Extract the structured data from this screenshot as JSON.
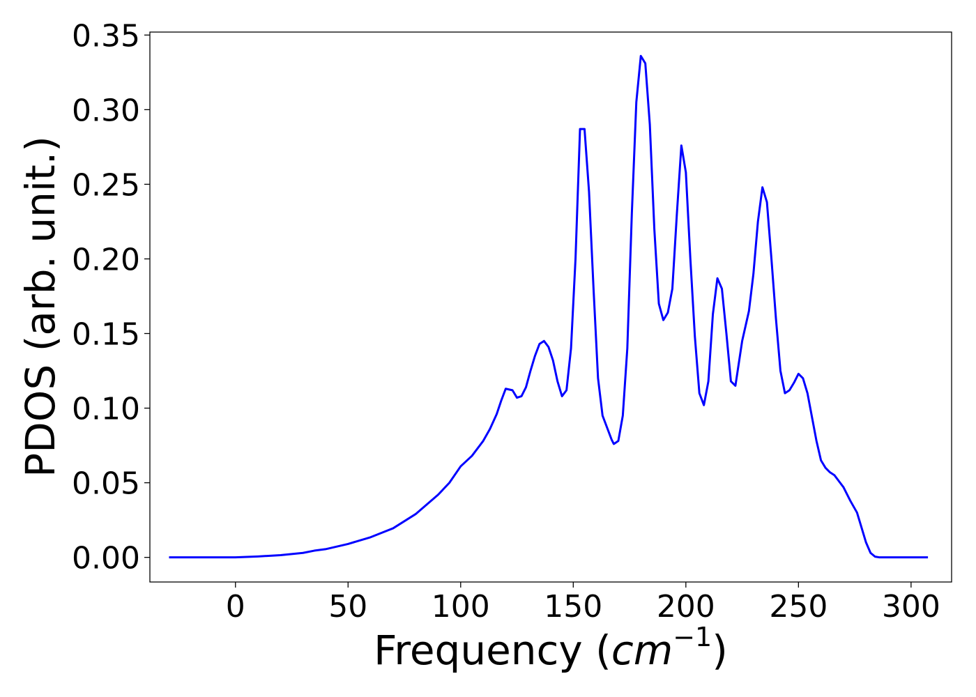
{
  "chart_data": {
    "type": "line",
    "title": "",
    "xlabel_main": "Frequency (",
    "xlabel_var": "cm",
    "xlabel_sup": "−1",
    "xlabel_close": ")",
    "ylabel": "PDOS (arb. unit.)",
    "xlim": [
      -38,
      318
    ],
    "ylim": [
      -0.0165,
      0.352
    ],
    "grid": false,
    "line_color": "#0000ff",
    "x_ticks": [
      0,
      50,
      100,
      150,
      200,
      250,
      300
    ],
    "x_tick_labels": [
      "0",
      "50",
      "100",
      "150",
      "200",
      "250",
      "300"
    ],
    "y_ticks": [
      0.0,
      0.05,
      0.1,
      0.15,
      0.2,
      0.25,
      0.3,
      0.35
    ],
    "y_tick_labels": [
      "0.00",
      "0.05",
      "0.10",
      "0.15",
      "0.20",
      "0.25",
      "0.30",
      "0.35"
    ],
    "series": [
      {
        "x": [
          -29.5,
          0,
          5,
          10,
          20,
          30,
          35,
          40,
          50,
          60,
          70,
          80,
          90,
          95,
          100,
          105,
          110,
          113,
          116,
          118,
          120,
          123,
          125,
          127,
          129,
          131,
          133,
          135,
          137,
          139,
          141,
          143,
          145,
          147,
          149,
          151,
          153,
          155,
          157,
          159,
          161,
          163,
          165,
          167,
          168,
          170,
          172,
          174,
          176,
          178,
          180,
          182,
          184,
          186,
          188,
          190,
          192,
          194,
          196,
          198,
          200,
          202,
          204,
          206,
          208,
          210,
          212,
          214,
          216,
          218,
          220,
          222,
          225,
          228,
          230,
          232,
          234,
          236,
          238,
          240,
          242,
          244,
          246,
          248,
          250,
          252,
          254,
          256,
          258,
          260,
          262,
          264,
          266,
          268,
          270,
          273,
          276,
          278,
          280,
          282,
          284,
          286,
          288,
          300,
          307.5
        ],
        "y": [
          0.0,
          0.0,
          0.0003,
          0.0006,
          0.0015,
          0.003,
          0.0045,
          0.0055,
          0.009,
          0.0135,
          0.0195,
          0.029,
          0.042,
          0.05,
          0.061,
          0.068,
          0.078,
          0.086,
          0.096,
          0.105,
          0.113,
          0.112,
          0.107,
          0.108,
          0.114,
          0.125,
          0.135,
          0.143,
          0.145,
          0.141,
          0.132,
          0.118,
          0.108,
          0.112,
          0.14,
          0.2,
          0.287,
          0.287,
          0.245,
          0.18,
          0.12,
          0.095,
          0.087,
          0.079,
          0.076,
          0.078,
          0.095,
          0.14,
          0.23,
          0.305,
          0.336,
          0.331,
          0.29,
          0.22,
          0.17,
          0.159,
          0.164,
          0.18,
          0.23,
          0.276,
          0.258,
          0.2,
          0.148,
          0.11,
          0.102,
          0.118,
          0.163,
          0.187,
          0.18,
          0.15,
          0.118,
          0.115,
          0.145,
          0.165,
          0.19,
          0.225,
          0.248,
          0.238,
          0.2,
          0.16,
          0.125,
          0.11,
          0.112,
          0.117,
          0.123,
          0.12,
          0.11,
          0.094,
          0.078,
          0.065,
          0.06,
          0.057,
          0.055,
          0.051,
          0.047,
          0.038,
          0.03,
          0.02,
          0.01,
          0.003,
          0.0005,
          0.0,
          0.0,
          0.0,
          0.0
        ]
      }
    ]
  }
}
